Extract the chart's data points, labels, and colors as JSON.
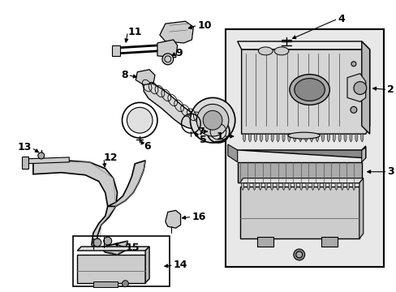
{
  "bg_color": "#ffffff",
  "fig_width": 4.89,
  "fig_height": 3.6,
  "dpi": 100,
  "gray_fill": "#c8c8c8",
  "light_gray": "#e8e8e8",
  "dark_line": "#1a1a1a"
}
